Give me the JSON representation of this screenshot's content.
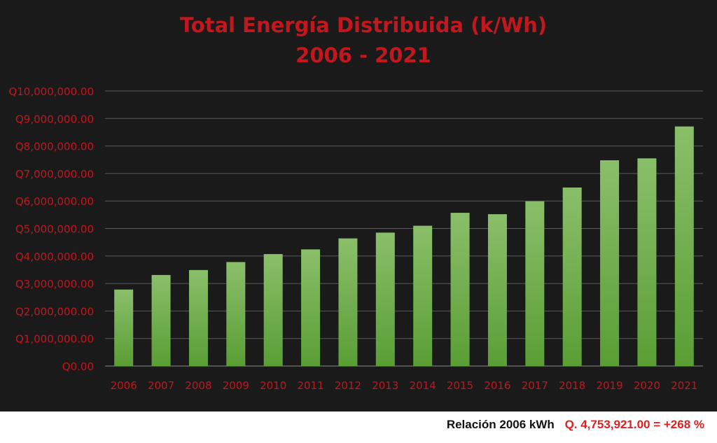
{
  "chart_data": {
    "type": "bar",
    "title": "Total Energía Distribuida (k/Wh)",
    "subtitle": "2006 - 2021",
    "categories": [
      "2006",
      "2007",
      "2008",
      "2009",
      "2010",
      "2011",
      "2012",
      "2013",
      "2014",
      "2015",
      "2016",
      "2017",
      "2018",
      "2019",
      "2020",
      "2021"
    ],
    "values": [
      2780000,
      3310000,
      3490000,
      3780000,
      4070000,
      4240000,
      4640000,
      4850000,
      5100000,
      5570000,
      5520000,
      5990000,
      6490000,
      7480000,
      7550000,
      8710000
    ],
    "ylim": [
      0,
      10000000
    ],
    "yticks": [
      0,
      1000000,
      2000000,
      3000000,
      4000000,
      5000000,
      6000000,
      7000000,
      8000000,
      9000000,
      10000000
    ],
    "ytick_labels": [
      "Q0.00",
      "Q1,000,000.00",
      "Q2,000,000.00",
      "Q3,000,000.00",
      "Q4,000,000.00",
      "Q5,000,000.00",
      "Q6,000,000.00",
      "Q7,000,000.00",
      "Q8,000,000.00",
      "Q9,000,000.00",
      "Q10,000,000.00"
    ],
    "xlabel": "",
    "ylabel": "",
    "grid": true,
    "legend": "none"
  },
  "footer": {
    "label": "Relación 2006 kWh",
    "value": "Q. 4,753,921.00 = +268 %"
  },
  "colors": {
    "background": "#1a1a1a",
    "title": "#c0181e",
    "axis_text": "#c0181e",
    "gridline": "#5a5a5a",
    "bar_top": "#8abf6a",
    "bar_bottom": "#5a9e34",
    "footer_value": "#e02020"
  }
}
